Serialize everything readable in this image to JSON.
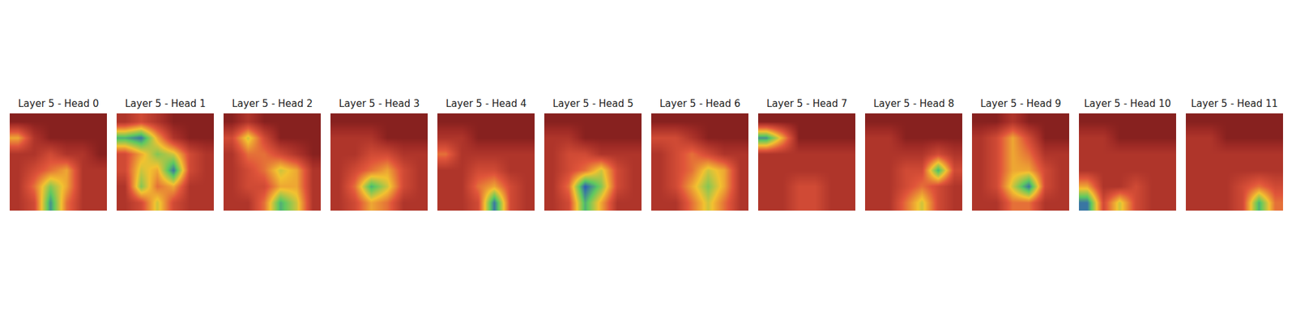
{
  "chart_data": [
    {
      "type": "heatmap",
      "title": "Layer 5 - Head 0",
      "color_range": [
        0,
        1
      ],
      "tick_labels": false,
      "cells": [
        [
          0.1,
          0.1,
          0.1,
          0.1,
          0.1,
          0.1
        ],
        [
          0.5,
          0.2,
          0.1,
          0.1,
          0.1,
          0.1
        ],
        [
          0.2,
          0.2,
          0.3,
          0.2,
          0.2,
          0.1
        ],
        [
          0.2,
          0.3,
          0.4,
          0.5,
          0.2,
          0.2
        ],
        [
          0.2,
          0.4,
          0.7,
          0.5,
          0.2,
          0.2
        ],
        [
          0.2,
          0.3,
          0.85,
          0.4,
          0.2,
          0.2
        ]
      ]
    },
    {
      "type": "heatmap",
      "title": "Layer 5 - Head 1",
      "color_range": [
        0,
        1
      ],
      "tick_labels": false,
      "cells": [
        [
          0.2,
          0.3,
          0.2,
          0.1,
          0.1,
          0.1
        ],
        [
          0.8,
          0.9,
          0.5,
          0.2,
          0.1,
          0.1
        ],
        [
          0.3,
          0.5,
          0.7,
          0.6,
          0.3,
          0.2
        ],
        [
          0.3,
          0.6,
          0.5,
          0.9,
          0.3,
          0.2
        ],
        [
          0.2,
          0.7,
          0.4,
          0.5,
          0.2,
          0.2
        ],
        [
          0.2,
          0.3,
          0.6,
          0.3,
          0.2,
          0.2
        ]
      ]
    },
    {
      "type": "heatmap",
      "title": "Layer 5 - Head 2",
      "color_range": [
        0,
        1
      ],
      "tick_labels": false,
      "cells": [
        [
          0.1,
          0.2,
          0.1,
          0.1,
          0.1,
          0.1
        ],
        [
          0.3,
          0.6,
          0.3,
          0.1,
          0.1,
          0.1
        ],
        [
          0.2,
          0.4,
          0.4,
          0.3,
          0.2,
          0.1
        ],
        [
          0.2,
          0.3,
          0.4,
          0.6,
          0.5,
          0.2
        ],
        [
          0.2,
          0.3,
          0.3,
          0.5,
          0.5,
          0.2
        ],
        [
          0.2,
          0.2,
          0.4,
          0.8,
          0.6,
          0.2
        ]
      ]
    },
    {
      "type": "heatmap",
      "title": "Layer 5 - Head 3",
      "color_range": [
        0,
        1
      ],
      "tick_labels": false,
      "cells": [
        [
          0.1,
          0.1,
          0.1,
          0.1,
          0.1,
          0.1
        ],
        [
          0.2,
          0.2,
          0.2,
          0.1,
          0.1,
          0.1
        ],
        [
          0.2,
          0.2,
          0.3,
          0.3,
          0.2,
          0.2
        ],
        [
          0.2,
          0.3,
          0.4,
          0.5,
          0.3,
          0.2
        ],
        [
          0.2,
          0.4,
          0.8,
          0.6,
          0.3,
          0.2
        ],
        [
          0.2,
          0.3,
          0.5,
          0.4,
          0.2,
          0.2
        ]
      ]
    },
    {
      "type": "heatmap",
      "title": "Layer 5 - Head 4",
      "color_range": [
        0,
        1
      ],
      "tick_labels": false,
      "cells": [
        [
          0.1,
          0.1,
          0.1,
          0.1,
          0.1,
          0.1
        ],
        [
          0.2,
          0.2,
          0.1,
          0.1,
          0.1,
          0.1
        ],
        [
          0.4,
          0.2,
          0.2,
          0.2,
          0.2,
          0.2
        ],
        [
          0.2,
          0.2,
          0.3,
          0.3,
          0.2,
          0.2
        ],
        [
          0.2,
          0.2,
          0.4,
          0.5,
          0.3,
          0.2
        ],
        [
          0.2,
          0.2,
          0.3,
          0.9,
          0.3,
          0.2
        ]
      ]
    },
    {
      "type": "heatmap",
      "title": "Layer 5 - Head 5",
      "color_range": [
        0,
        1
      ],
      "tick_labels": false,
      "cells": [
        [
          0.1,
          0.1,
          0.1,
          0.1,
          0.1,
          0.1
        ],
        [
          0.2,
          0.2,
          0.1,
          0.1,
          0.1,
          0.1
        ],
        [
          0.2,
          0.3,
          0.3,
          0.2,
          0.2,
          0.2
        ],
        [
          0.2,
          0.3,
          0.4,
          0.6,
          0.3,
          0.2
        ],
        [
          0.2,
          0.4,
          0.95,
          0.7,
          0.3,
          0.2
        ],
        [
          0.2,
          0.3,
          0.8,
          0.5,
          0.2,
          0.2
        ]
      ]
    },
    {
      "type": "heatmap",
      "title": "Layer 5 - Head 6",
      "color_range": [
        0,
        1
      ],
      "tick_labels": false,
      "cells": [
        [
          0.1,
          0.1,
          0.1,
          0.1,
          0.1,
          0.1
        ],
        [
          0.3,
          0.3,
          0.2,
          0.1,
          0.1,
          0.1
        ],
        [
          0.2,
          0.3,
          0.4,
          0.3,
          0.2,
          0.2
        ],
        [
          0.2,
          0.3,
          0.4,
          0.6,
          0.5,
          0.2
        ],
        [
          0.2,
          0.3,
          0.5,
          0.7,
          0.5,
          0.2
        ],
        [
          0.2,
          0.2,
          0.4,
          0.6,
          0.4,
          0.2
        ]
      ]
    },
    {
      "type": "heatmap",
      "title": "Layer 5 - Head 7",
      "color_range": [
        0,
        1
      ],
      "tick_labels": false,
      "cells": [
        [
          0.1,
          0.1,
          0.1,
          0.1,
          0.1,
          0.1
        ],
        [
          0.85,
          0.5,
          0.1,
          0.1,
          0.1,
          0.1
        ],
        [
          0.2,
          0.2,
          0.2,
          0.2,
          0.2,
          0.2
        ],
        [
          0.2,
          0.2,
          0.2,
          0.2,
          0.2,
          0.2
        ],
        [
          0.2,
          0.2,
          0.3,
          0.3,
          0.2,
          0.2
        ],
        [
          0.2,
          0.2,
          0.3,
          0.3,
          0.2,
          0.2
        ]
      ]
    },
    {
      "type": "heatmap",
      "title": "Layer 5 - Head 8",
      "color_range": [
        0,
        1
      ],
      "tick_labels": false,
      "cells": [
        [
          0.1,
          0.1,
          0.1,
          0.1,
          0.1,
          0.1
        ],
        [
          0.2,
          0.2,
          0.1,
          0.1,
          0.1,
          0.1
        ],
        [
          0.2,
          0.2,
          0.2,
          0.2,
          0.3,
          0.2
        ],
        [
          0.2,
          0.2,
          0.3,
          0.3,
          0.8,
          0.3
        ],
        [
          0.2,
          0.2,
          0.3,
          0.4,
          0.3,
          0.2
        ],
        [
          0.2,
          0.2,
          0.4,
          0.6,
          0.3,
          0.2
        ]
      ]
    },
    {
      "type": "heatmap",
      "title": "Layer 5 - Head 9",
      "color_range": [
        0,
        1
      ],
      "tick_labels": false,
      "cells": [
        [
          0.1,
          0.1,
          0.2,
          0.1,
          0.1,
          0.1
        ],
        [
          0.2,
          0.3,
          0.5,
          0.3,
          0.1,
          0.1
        ],
        [
          0.2,
          0.3,
          0.5,
          0.4,
          0.2,
          0.2
        ],
        [
          0.2,
          0.3,
          0.5,
          0.5,
          0.3,
          0.2
        ],
        [
          0.2,
          0.3,
          0.6,
          0.9,
          0.3,
          0.2
        ],
        [
          0.2,
          0.2,
          0.4,
          0.4,
          0.2,
          0.2
        ]
      ]
    },
    {
      "type": "heatmap",
      "title": "Layer 5 - Head 10",
      "color_range": [
        0,
        1
      ],
      "tick_labels": false,
      "cells": [
        [
          0.1,
          0.1,
          0.1,
          0.1,
          0.1,
          0.1
        ],
        [
          0.2,
          0.2,
          0.1,
          0.1,
          0.1,
          0.1
        ],
        [
          0.2,
          0.2,
          0.2,
          0.2,
          0.2,
          0.2
        ],
        [
          0.2,
          0.2,
          0.2,
          0.2,
          0.2,
          0.2
        ],
        [
          0.5,
          0.2,
          0.2,
          0.3,
          0.2,
          0.2
        ],
        [
          0.9,
          0.3,
          0.6,
          0.3,
          0.2,
          0.2
        ]
      ]
    },
    {
      "type": "heatmap",
      "title": "Layer 5 - Head 11",
      "color_range": [
        0,
        1
      ],
      "tick_labels": false,
      "cells": [
        [
          0.1,
          0.1,
          0.1,
          0.1,
          0.1,
          0.1
        ],
        [
          0.2,
          0.2,
          0.1,
          0.1,
          0.1,
          0.1
        ],
        [
          0.2,
          0.2,
          0.2,
          0.2,
          0.2,
          0.2
        ],
        [
          0.2,
          0.2,
          0.2,
          0.2,
          0.2,
          0.2
        ],
        [
          0.2,
          0.2,
          0.2,
          0.3,
          0.4,
          0.3
        ],
        [
          0.2,
          0.2,
          0.2,
          0.3,
          0.8,
          0.4
        ]
      ]
    }
  ]
}
